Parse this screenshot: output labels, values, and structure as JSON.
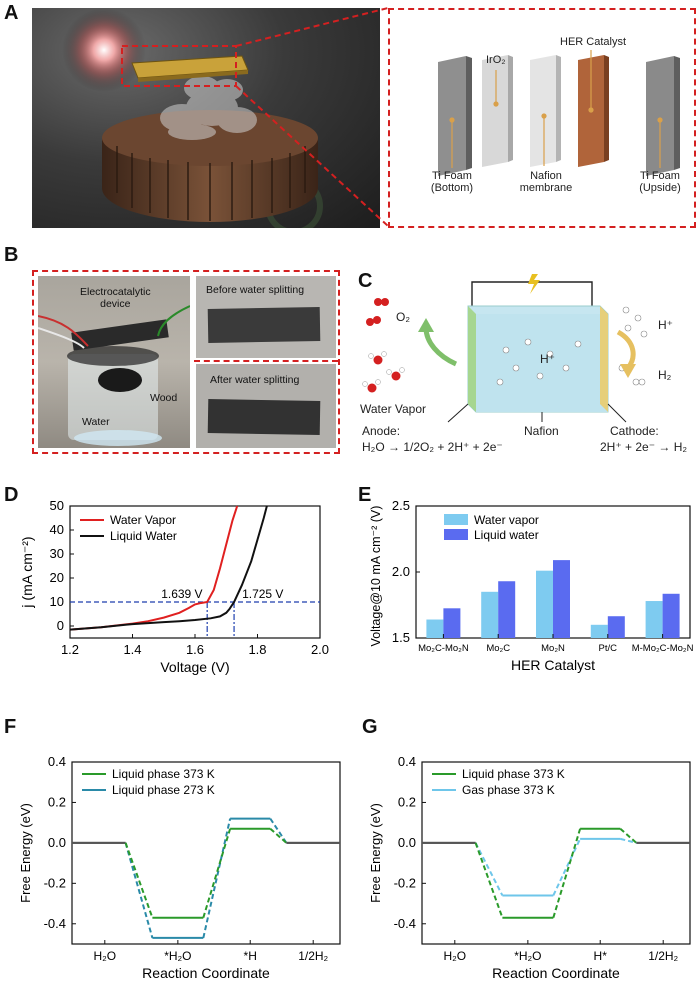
{
  "panels": {
    "A": "A",
    "B": "B",
    "C": "C",
    "D": "D",
    "E": "E",
    "F": "F",
    "G": "G"
  },
  "panel_a": {
    "labels": {
      "iro2": "IrO₂",
      "her_catalyst": "HER Catalyst",
      "ti_foam_bottom": "Ti Foam\n(Bottom)",
      "nafion_membrane": "Nafion\nmembrane",
      "ti_foam_upside": "Ti Foam\n(Upside)"
    },
    "colors": {
      "dash": "#d42020",
      "catalyst": "#b0643a",
      "foam": "#8f8f8f",
      "membrane": "#dcdcdc"
    }
  },
  "panel_b": {
    "labels": {
      "device": "Electrocatalytic\ndevice",
      "wood": "Wood",
      "water": "Water",
      "before": "Before water splitting",
      "after": "After water splitting"
    }
  },
  "panel_c": {
    "labels": {
      "o2": "O₂",
      "hplus_right": "H⁺",
      "hplus_center": "H⁺",
      "h2": "H₂",
      "water_vapor": "Water Vapor",
      "nafion": "Nafion",
      "anode": "Anode:",
      "anode_eq": "H₂O → 1/2O₂ + 2H⁺ + 2e⁻",
      "cathode": "Cathode:",
      "cathode_eq": "2H⁺ + 2e⁻ → H₂"
    }
  },
  "chart_data": [
    {
      "panel": "D",
      "type": "line",
      "xlabel": "Voltage (V)",
      "ylabel": "j (mA cm⁻²)",
      "xlim": [
        1.2,
        2.0
      ],
      "ylim": [
        -5,
        50
      ],
      "xticks": [
        "1.2",
        "1.4",
        "1.6",
        "1.8",
        "2.0"
      ],
      "yticks": [
        "0",
        "10",
        "20",
        "30",
        "40",
        "50"
      ],
      "legend": "top-left",
      "series": [
        {
          "name": "Water Vapor",
          "color": "#e02020",
          "x": [
            1.2,
            1.3,
            1.4,
            1.45,
            1.5,
            1.55,
            1.58,
            1.6,
            1.62,
            1.639,
            1.66,
            1.68,
            1.7,
            1.72,
            1.735
          ],
          "y": [
            -1.5,
            -0.5,
            1,
            2,
            3.5,
            5.5,
            7.5,
            9,
            9.6,
            10,
            15,
            24,
            34,
            44,
            50
          ]
        },
        {
          "name": "Liquid Water",
          "color": "#111111",
          "x": [
            1.2,
            1.3,
            1.4,
            1.5,
            1.55,
            1.6,
            1.65,
            1.68,
            1.7,
            1.71,
            1.725,
            1.75,
            1.78,
            1.8,
            1.82,
            1.83
          ],
          "y": [
            -1.5,
            -0.5,
            0.8,
            1.6,
            2,
            2.5,
            3.2,
            4,
            5.5,
            7,
            10,
            17,
            27,
            36,
            45,
            50
          ]
        }
      ],
      "annotations": [
        {
          "text": "1.639 V",
          "x": 1.639,
          "y": 10
        },
        {
          "text": "1.725 V",
          "x": 1.725,
          "y": 10
        }
      ],
      "reference_line_y": 10
    },
    {
      "panel": "E",
      "type": "bar",
      "xlabel": "HER Catalyst",
      "ylabel": "Voltage@10 mA cm⁻² (V)",
      "ylim": [
        1.5,
        2.5
      ],
      "yticks": [
        "1.5",
        "2.0",
        "2.5"
      ],
      "legend": "top-left",
      "categories": [
        "Mo₂C-Mo₂N",
        "Mo₂C",
        "Mo₂N",
        "Pt/C",
        "M-Mo₂C-Mo₂N"
      ],
      "series": [
        {
          "name": "Water vapor",
          "color": "#7ecbf0",
          "values": [
            1.64,
            1.85,
            2.01,
            1.6,
            1.78
          ]
        },
        {
          "name": "Liquid water",
          "color": "#5a6bf0",
          "values": [
            1.725,
            1.93,
            2.09,
            1.665,
            1.835
          ]
        }
      ]
    },
    {
      "panel": "F",
      "type": "line",
      "xlabel": "Reaction Coordinate",
      "ylabel": "Free Energy (eV)",
      "ylim": [
        -0.5,
        0.4
      ],
      "yticks": [
        "0.4",
        "0.2",
        "0.0",
        "-0.2",
        "-0.4"
      ],
      "xticks": [
        "H₂O",
        "*H₂O",
        "*H",
        "1/2H₂"
      ],
      "legend": "top-left",
      "series": [
        {
          "name": "Liquid phase 373 K",
          "color": "#2a9a2a",
          "levels": [
            0.0,
            -0.37,
            0.07,
            0.0
          ]
        },
        {
          "name": "Liquid phase 273 K",
          "color": "#2a8aa8",
          "levels": [
            0.0,
            -0.47,
            0.12,
            0.0
          ]
        }
      ]
    },
    {
      "panel": "G",
      "type": "line",
      "xlabel": "Reaction Coordinate",
      "ylabel": "Free Energy (eV)",
      "ylim": [
        -0.5,
        0.4
      ],
      "yticks": [
        "0.4",
        "0.2",
        "0.0",
        "-0.2",
        "-0.4"
      ],
      "xticks": [
        "H₂O",
        "*H₂O",
        "H*",
        "1/2H₂"
      ],
      "legend": "top-left",
      "series": [
        {
          "name": "Liquid phase 373 K",
          "color": "#2a9a2a",
          "levels": [
            0.0,
            -0.37,
            0.07,
            0.0
          ]
        },
        {
          "name": "Gas phase 373 K",
          "color": "#6ec6ea",
          "levels": [
            0.0,
            -0.26,
            0.02,
            0.0
          ]
        }
      ]
    }
  ]
}
